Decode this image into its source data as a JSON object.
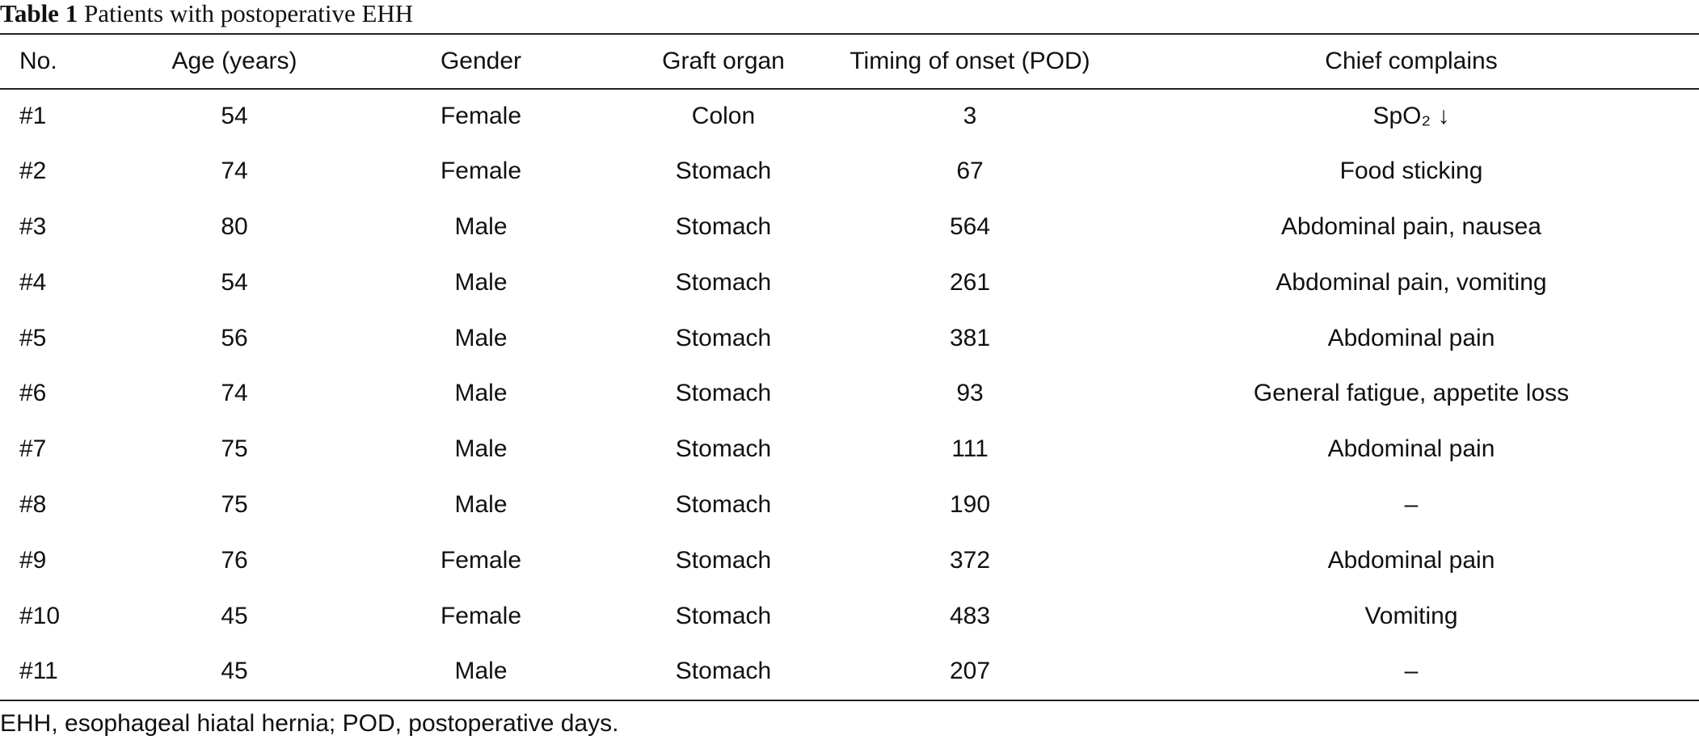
{
  "caption": {
    "label": "Table 1",
    "title": "Patients with postoperative EHH"
  },
  "table": {
    "headers": [
      "No.",
      "Age (years)",
      "Gender",
      "Graft organ",
      "Timing of onset (POD)",
      "Chief complains"
    ],
    "rows": [
      [
        "#1",
        "54",
        "Female",
        "Colon",
        "3",
        "SpO₂ ↓"
      ],
      [
        "#2",
        "74",
        "Female",
        "Stomach",
        "67",
        "Food sticking"
      ],
      [
        "#3",
        "80",
        "Male",
        "Stomach",
        "564",
        "Abdominal pain, nausea"
      ],
      [
        "#4",
        "54",
        "Male",
        "Stomach",
        "261",
        "Abdominal pain, vomiting"
      ],
      [
        "#5",
        "56",
        "Male",
        "Stomach",
        "381",
        "Abdominal pain"
      ],
      [
        "#6",
        "74",
        "Male",
        "Stomach",
        "93",
        "General fatigue, appetite loss"
      ],
      [
        "#7",
        "75",
        "Male",
        "Stomach",
        "111",
        "Abdominal pain"
      ],
      [
        "#8",
        "75",
        "Male",
        "Stomach",
        "190",
        "–"
      ],
      [
        "#9",
        "76",
        "Female",
        "Stomach",
        "372",
        "Abdominal pain"
      ],
      [
        "#10",
        "45",
        "Female",
        "Stomach",
        "483",
        "Vomiting"
      ],
      [
        "#11",
        "45",
        "Male",
        "Stomach",
        "207",
        "–"
      ]
    ]
  },
  "footnote": "EHH, esophageal hiatal hernia; POD, postoperative days."
}
